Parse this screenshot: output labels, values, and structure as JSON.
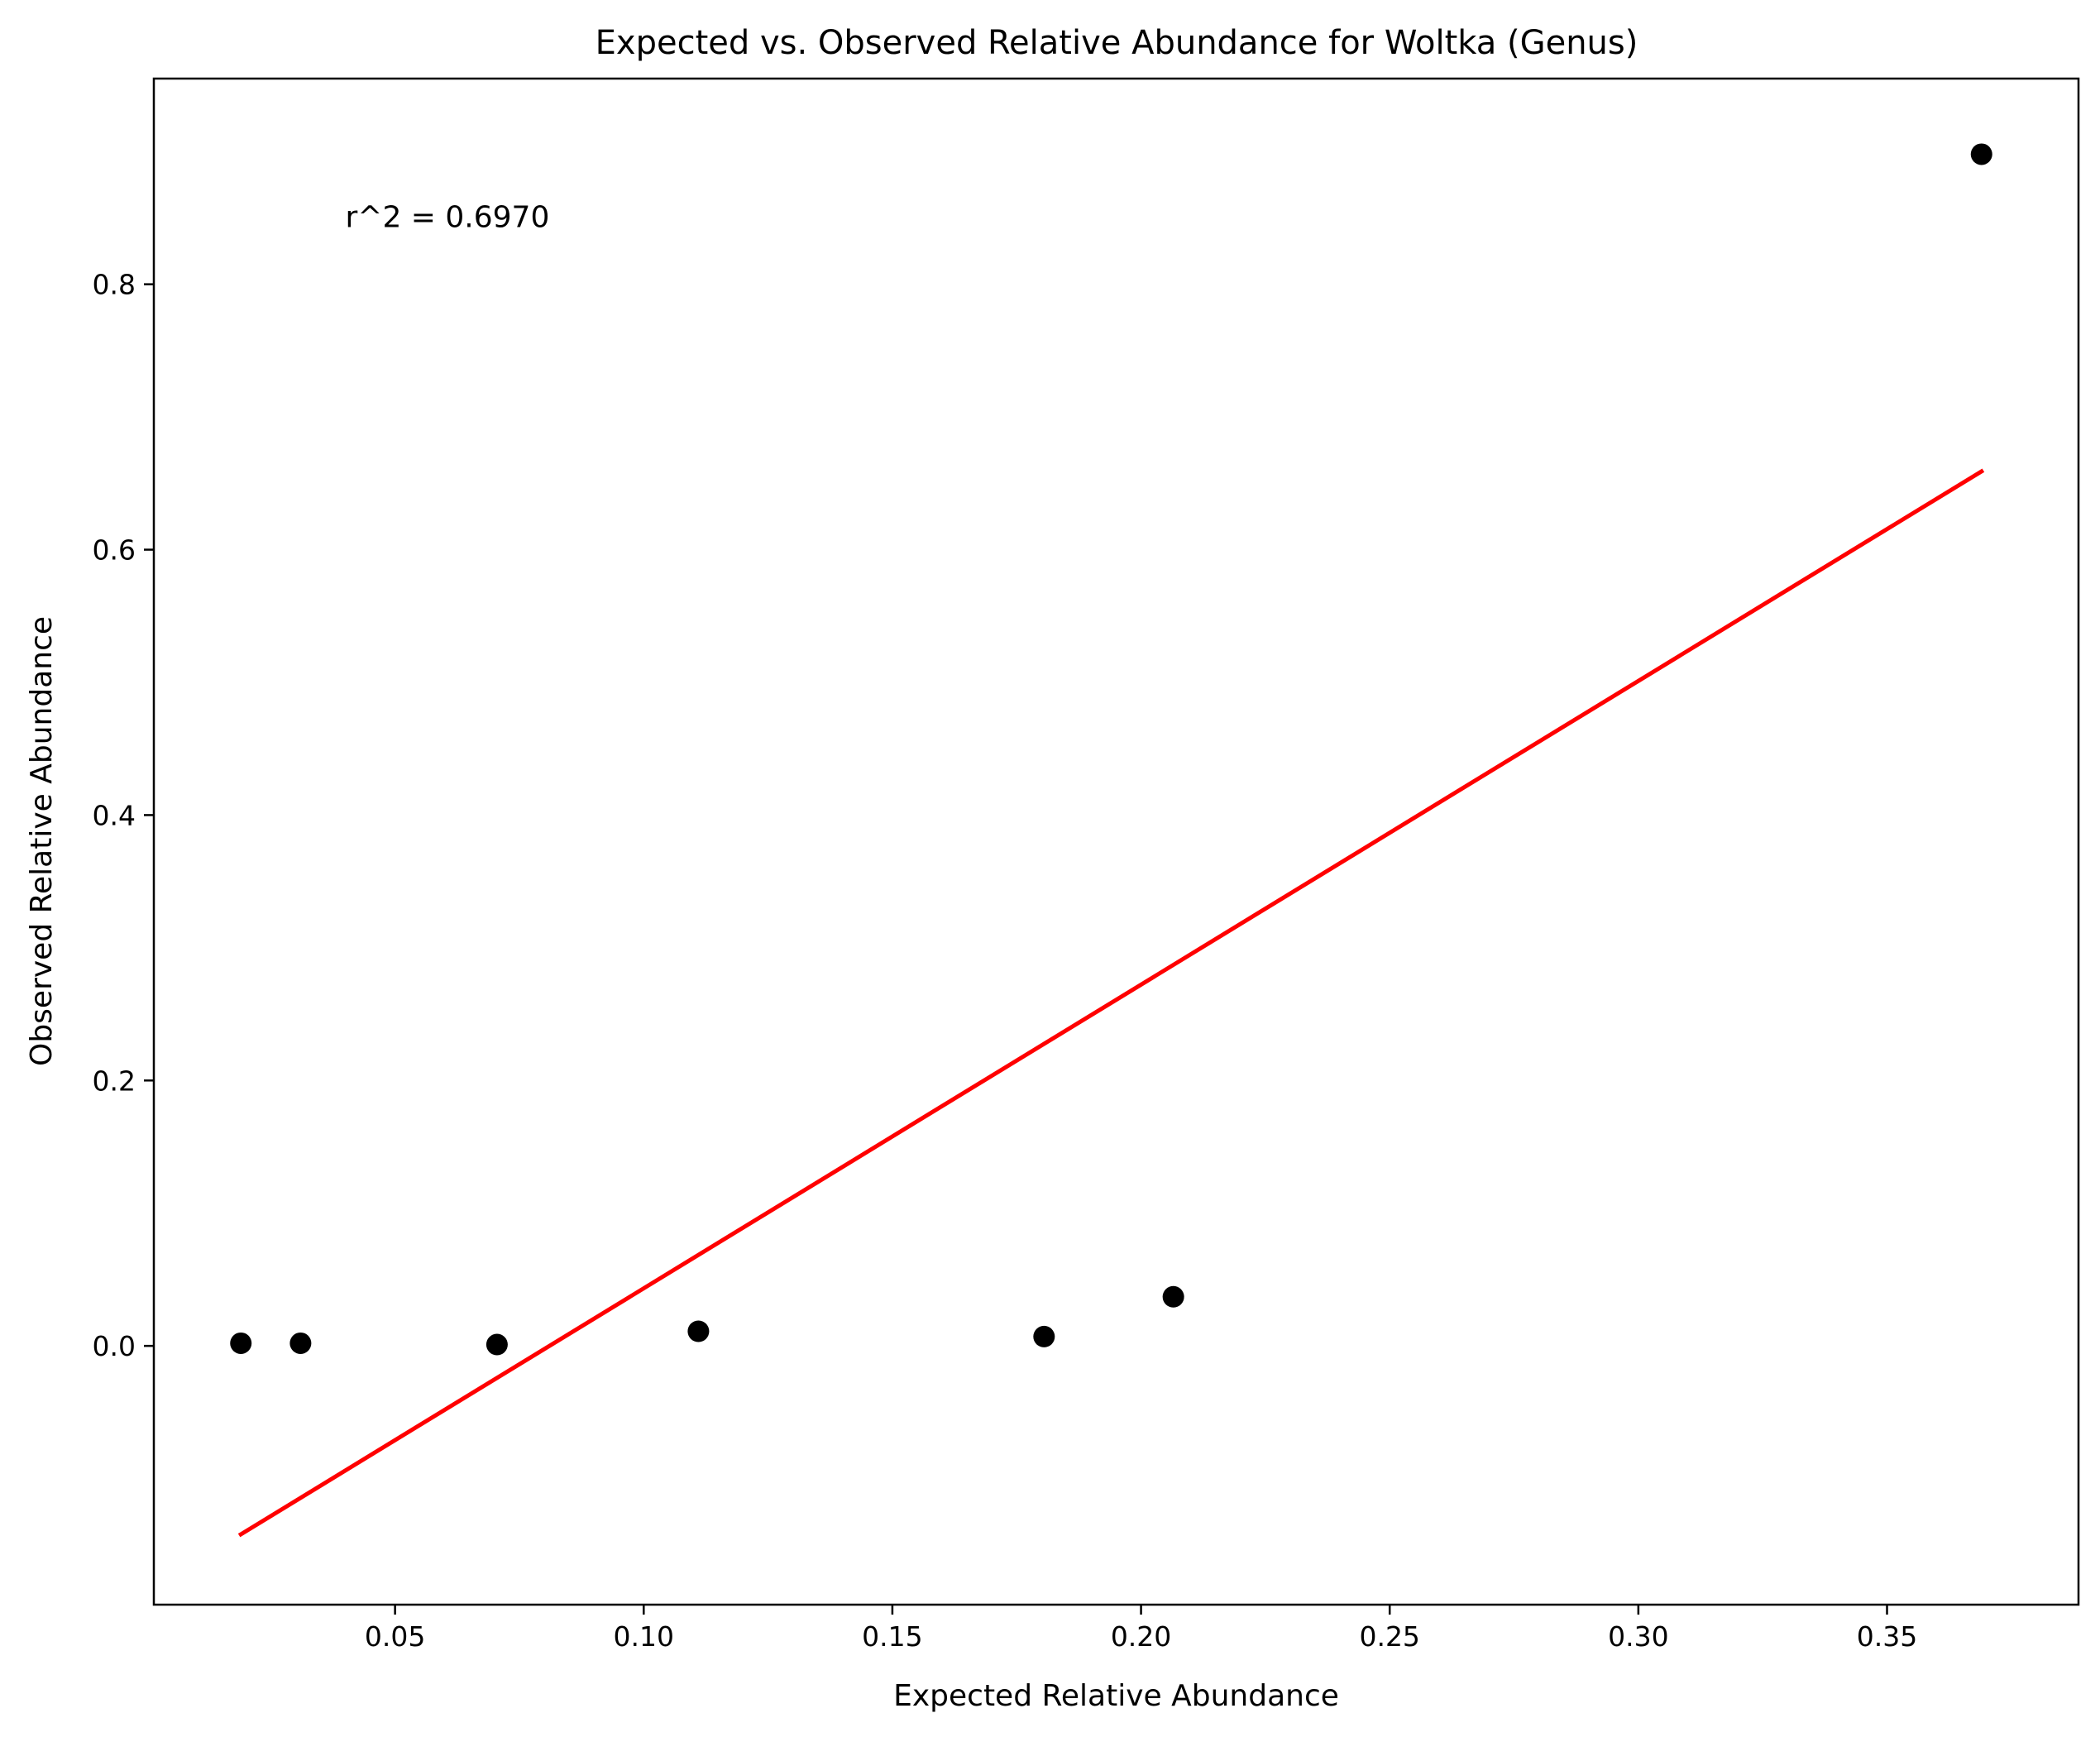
{
  "chart_data": {
    "type": "scatter",
    "title": "Expected vs. Observed Relative Abundance for Woltka (Genus)",
    "xlabel": "Expected Relative Abundance",
    "ylabel": "Observed Relative Abundance",
    "xlim": [
      0.0015,
      0.3885
    ],
    "ylim": [
      -0.195,
      0.955
    ],
    "xticks": [
      0.05,
      0.1,
      0.15,
      0.2,
      0.25,
      0.3,
      0.35
    ],
    "xtick_labels": [
      "0.05",
      "0.10",
      "0.15",
      "0.20",
      "0.25",
      "0.30",
      "0.35"
    ],
    "yticks": [
      0.0,
      0.2,
      0.4,
      0.6,
      0.8
    ],
    "ytick_labels": [
      "0.0",
      "0.2",
      "0.4",
      "0.6",
      "0.8"
    ],
    "grid": false,
    "points": {
      "color": "#000000",
      "x": [
        0.019,
        0.031,
        0.0705,
        0.111,
        0.1805,
        0.2065,
        0.369
      ],
      "y": [
        0.002,
        0.002,
        0.001,
        0.011,
        0.007,
        0.037,
        0.898
      ]
    },
    "fit_line": {
      "color": "#ff0000",
      "x": [
        0.019,
        0.369
      ],
      "y": [
        -0.142,
        0.659
      ]
    },
    "annotation": {
      "text": "r^2 = 0.6970",
      "x": 0.04,
      "y": 0.843
    }
  }
}
